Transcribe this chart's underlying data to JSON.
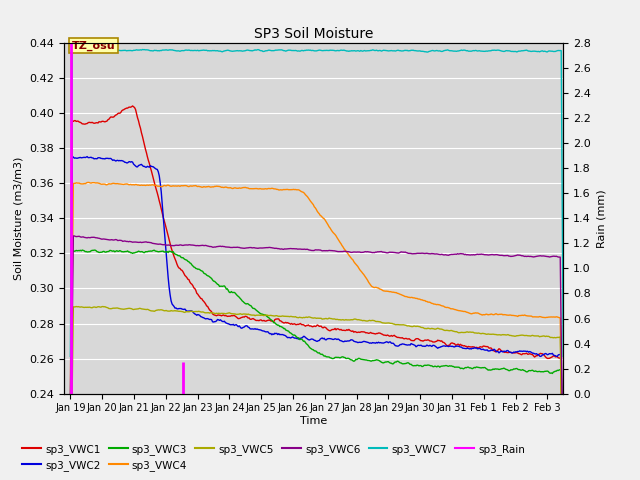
{
  "title": "SP3 Soil Moisture",
  "xlabel": "Time",
  "ylabel_left": "Soil Moisture (m3/m3)",
  "ylabel_right": "Rain (mm)",
  "ylim_left": [
    0.24,
    0.44
  ],
  "ylim_right": [
    0.0,
    2.8
  ],
  "fig_facecolor": "#f0f0f0",
  "axes_facecolor": "#d8d8d8",
  "tz_label": "TZ_osu",
  "tz_box_color": "#ffffaa",
  "tz_box_edge": "#aa8800",
  "series_colors": {
    "sp3_VWC1": "#dd0000",
    "sp3_VWC2": "#0000dd",
    "sp3_VWC3": "#00aa00",
    "sp3_VWC4": "#ff8800",
    "sp3_VWC5": "#aaaa00",
    "sp3_VWC6": "#880088",
    "sp3_VWC7": "#00bbbb",
    "sp3_Rain": "#ff00ff"
  }
}
